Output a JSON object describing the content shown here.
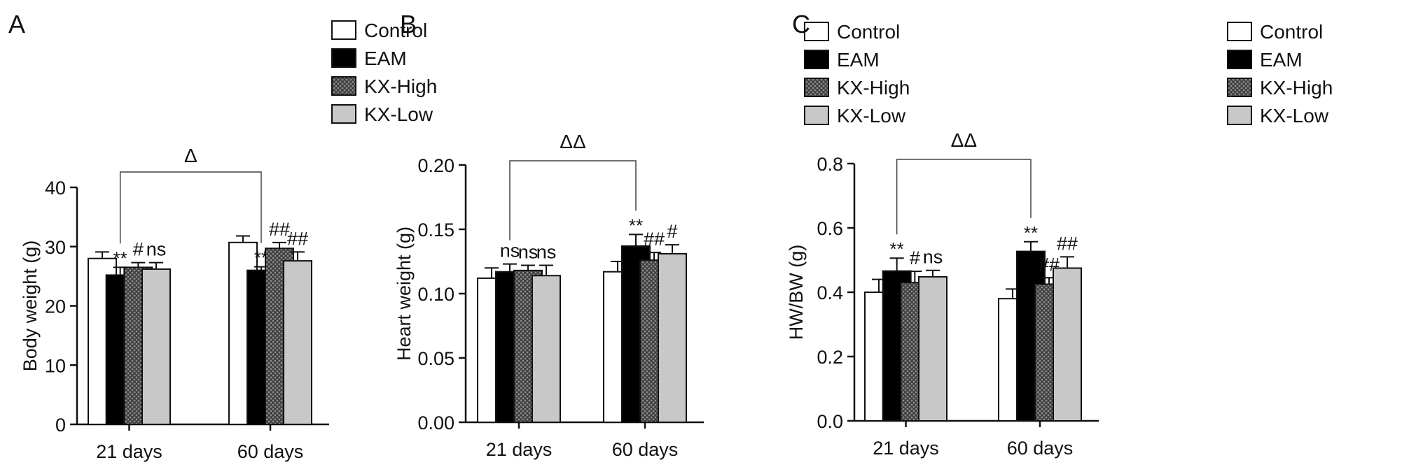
{
  "legend_items": [
    "Control",
    "EAM",
    "KX-High",
    "KX-Low"
  ],
  "colors": {
    "Control": "#ffffff",
    "EAM": "#000000",
    "KX-High": "#707070",
    "KX-Low": "#c8c8c8",
    "axis": "#111111",
    "significance_asterisk": "#666666"
  },
  "chart_data": [
    {
      "type": "bar",
      "panel_label": "A",
      "title": "",
      "xlabel": "",
      "ylabel": "Body weight (g)",
      "categories": [
        "21 days",
        "60 days"
      ],
      "ylim": [
        0,
        40
      ],
      "yticks": [
        "0",
        "10",
        "20",
        "30",
        "40"
      ],
      "series": [
        {
          "name": "Control",
          "values": [
            28.0,
            30.7
          ],
          "errors": [
            1.1,
            1.1
          ],
          "annotations": [
            "",
            ""
          ]
        },
        {
          "name": "EAM",
          "values": [
            25.2,
            26.0
          ],
          "errors": [
            1.3,
            0.6
          ],
          "annotations": [
            "**",
            "**"
          ]
        },
        {
          "name": "KX-High",
          "values": [
            26.5,
            29.7
          ],
          "errors": [
            0.8,
            1.0
          ],
          "annotations": [
            "#",
            "##"
          ]
        },
        {
          "name": "KX-Low",
          "values": [
            26.2,
            27.6
          ],
          "errors": [
            1.1,
            1.5
          ],
          "annotations": [
            "ns",
            "##"
          ]
        }
      ],
      "bracket": {
        "label": "Δ",
        "from": "21 days EAM",
        "to": "60 days EAM"
      }
    },
    {
      "type": "bar",
      "panel_label": "B",
      "title": "",
      "xlabel": "",
      "ylabel": "Heart weight (g)",
      "categories": [
        "21 days",
        "60 days"
      ],
      "ylim": [
        0,
        0.2
      ],
      "yticks": [
        "0.00",
        "0.05",
        "0.10",
        "0.15",
        "0.20"
      ],
      "series": [
        {
          "name": "Control",
          "values": [
            0.112,
            0.117
          ],
          "errors": [
            0.008,
            0.008
          ],
          "annotations": [
            "",
            ""
          ]
        },
        {
          "name": "EAM",
          "values": [
            0.117,
            0.137
          ],
          "errors": [
            0.006,
            0.009
          ],
          "annotations": [
            "ns",
            "**"
          ]
        },
        {
          "name": "KX-High",
          "values": [
            0.118,
            0.126
          ],
          "errors": [
            0.004,
            0.006
          ],
          "annotations": [
            "ns",
            "##"
          ]
        },
        {
          "name": "KX-Low",
          "values": [
            0.114,
            0.131
          ],
          "errors": [
            0.008,
            0.007
          ],
          "annotations": [
            "ns",
            "#"
          ]
        }
      ],
      "bracket": {
        "label": "ΔΔ",
        "from": "21 days EAM",
        "to": "60 days EAM"
      }
    },
    {
      "type": "bar",
      "panel_label": "C",
      "title": "",
      "xlabel": "",
      "ylabel": "HW/BW (g)",
      "categories": [
        "21 days",
        "60 days"
      ],
      "ylim": [
        0,
        0.8
      ],
      "yticks": [
        "0.0",
        "0.2",
        "0.4",
        "0.6",
        "0.8"
      ],
      "series": [
        {
          "name": "Control",
          "values": [
            0.4,
            0.38
          ],
          "errors": [
            0.04,
            0.03
          ],
          "annotations": [
            "",
            ""
          ]
        },
        {
          "name": "EAM",
          "values": [
            0.466,
            0.527
          ],
          "errors": [
            0.04,
            0.03
          ],
          "annotations": [
            "**",
            "**"
          ]
        },
        {
          "name": "KX-High",
          "values": [
            0.43,
            0.425
          ],
          "errors": [
            0.035,
            0.02
          ],
          "annotations": [
            "#",
            "##"
          ]
        },
        {
          "name": "KX-Low",
          "values": [
            0.448,
            0.475
          ],
          "errors": [
            0.02,
            0.035
          ],
          "annotations": [
            "ns",
            "##"
          ]
        }
      ],
      "bracket": {
        "label": "ΔΔ",
        "from": "21 days EAM",
        "to": "60 days EAM"
      }
    }
  ]
}
